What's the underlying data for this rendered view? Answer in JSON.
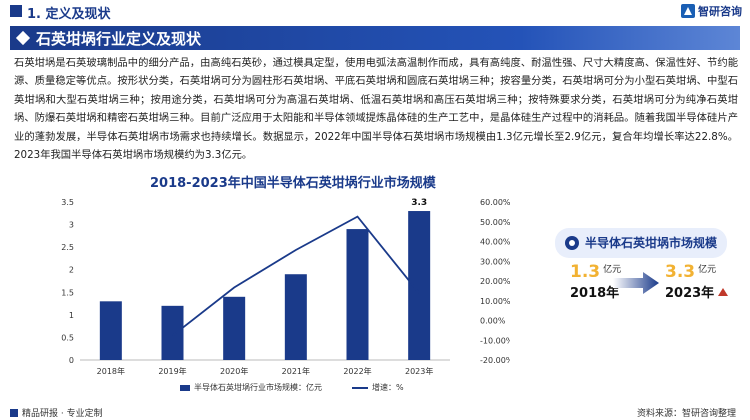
{
  "header": {
    "section_title": "1. 定义及现状",
    "brand": "智研咨询"
  },
  "banner": {
    "title": "石英坩埚行业定义及现状"
  },
  "intro": {
    "paragraph": "石英坩埚是石英玻璃制品中的细分产品，由高纯石英砂，通过模具定型，使用电弧法高温制作而成，具有高纯度、耐温性强、尺寸大精度高、保温性好、节约能源、质量稳定等优点。按形状分类，石英坩埚可分为圆柱形石英坩埚、平底石英坩埚和圆底石英坩埚三种；按容量分类，石英坩埚可分为小型石英坩埚、中型石英坩埚和大型石英坩埚三种；按用途分类，石英坩埚可分为高温石英坩埚、低温石英坩埚和高压石英坩埚三种；按特殊要求分类，石英坩埚可分为纯净石英坩埚、防爆石英坩埚和精密石英坩埚三种。目前广泛应用于太阳能和半导体领域提炼晶体硅的生产工艺中，是晶体硅生产过程中的消耗品。随着我国半导体硅片产业的蓬勃发展，半导体石英坩埚市场需求也持续增长。数据显示，2022年中国半导体石英坩埚市场规模由1.3亿元增长至2.9亿元，复合年均增长率达22.8%。2023年我国半导体石英坩埚市场规模约为3.3亿元。"
  },
  "chart_data": {
    "type": "bar",
    "title": "2018-2023年中国半导体石英坩埚行业市场规模",
    "categories": [
      "2018年",
      "2019年",
      "2020年",
      "2021年",
      "2022年",
      "2023年"
    ],
    "series": [
      {
        "name": "半导体石英坩埚行业市场规模：亿元",
        "type": "bar",
        "axis": "left",
        "values": [
          1.3,
          1.2,
          1.4,
          1.9,
          2.9,
          3.3
        ]
      },
      {
        "name": "增速：%",
        "type": "line",
        "axis": "right",
        "values": [
          null,
          -7.7,
          16.7,
          35.7,
          52.6,
          13.8
        ]
      }
    ],
    "y_left": {
      "range": [
        0,
        3.5
      ],
      "ticks": [
        "0",
        "0.5",
        "1",
        "1.5",
        "2",
        "2.5",
        "3",
        "3.5"
      ]
    },
    "y_right": {
      "range": [
        -20,
        60
      ],
      "ticks": [
        "-20.00%",
        "-10.00%",
        "0.00%",
        "10.00%",
        "20.00%",
        "30.00%",
        "40.00%",
        "50.00%",
        "60.00%"
      ]
    },
    "data_labels": [
      {
        "category": "2023年",
        "text": "3.3"
      }
    ],
    "grid": false,
    "legend": "bottom",
    "colors": {
      "bar": "#1a3a8a",
      "line": "#1a3a8a"
    }
  },
  "side_panel": {
    "title": "半导体石英坩埚市场规模",
    "from_value": "1.3",
    "from_unit": "亿元",
    "from_year": "2018年",
    "to_value": "3.3",
    "to_unit": "亿元",
    "to_year": "2023年"
  },
  "footer": {
    "left": "精品研报 · 专业定制",
    "right": "资料来源：智研咨询整理"
  }
}
